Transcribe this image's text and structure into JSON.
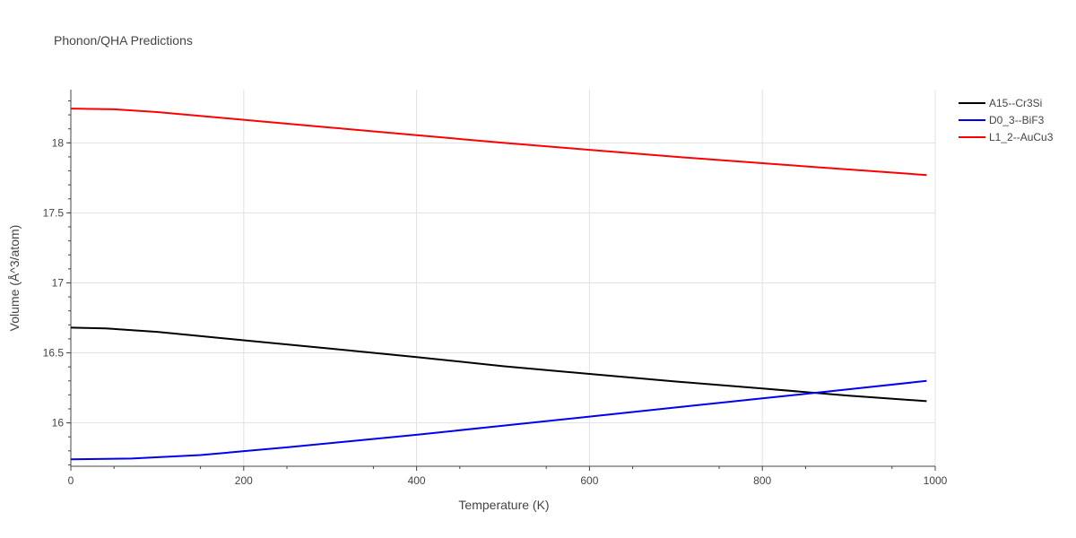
{
  "chart_data": {
    "type": "line",
    "title": "Phonon/QHA Predictions",
    "xlabel": "Temperature (K)",
    "ylabel": "Volume (Å^3/atom)",
    "xlim": [
      0,
      1000
    ],
    "ylim": [
      15.69,
      18.38
    ],
    "x_ticks": [
      0,
      200,
      400,
      600,
      800,
      1000
    ],
    "y_ticks": [
      16,
      16.5,
      17,
      17.5,
      18
    ],
    "x_tick_labels": [
      "0",
      "200",
      "400",
      "600",
      "800",
      "1000"
    ],
    "y_tick_labels": [
      "16",
      "16.5",
      "17",
      "17.5",
      "18"
    ],
    "grid": true,
    "legend_position": "top-right",
    "series": [
      {
        "name": "A15--Cr3Si",
        "color": "#000000",
        "x": [
          0,
          40,
          100,
          200,
          300,
          400,
          500,
          600,
          700,
          800,
          900,
          990
        ],
        "values": [
          16.68,
          16.675,
          16.65,
          16.59,
          16.53,
          16.47,
          16.405,
          16.35,
          16.295,
          16.245,
          16.195,
          16.155
        ]
      },
      {
        "name": "D0_3--BiF3",
        "color": "#0000ee",
        "x": [
          0,
          70,
          150,
          250,
          400,
          500,
          600,
          700,
          800,
          900,
          990
        ],
        "values": [
          15.74,
          15.745,
          15.77,
          15.825,
          15.915,
          15.98,
          16.045,
          16.11,
          16.175,
          16.24,
          16.3
        ]
      },
      {
        "name": "L1_2--AuCu3",
        "color": "#ff0000",
        "x": [
          0,
          50,
          100,
          200,
          300,
          400,
          500,
          600,
          700,
          800,
          900,
          990
        ],
        "values": [
          18.245,
          18.24,
          18.22,
          18.165,
          18.11,
          18.055,
          18.0,
          17.95,
          17.9,
          17.855,
          17.81,
          17.77
        ]
      }
    ]
  }
}
